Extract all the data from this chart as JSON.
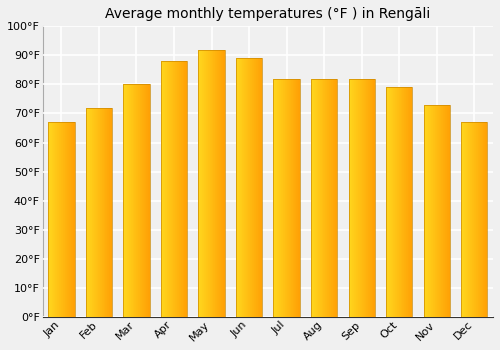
{
  "title": "Average monthly temperatures (°F ) in Rengāli",
  "months": [
    "Jan",
    "Feb",
    "Mar",
    "Apr",
    "May",
    "Jun",
    "Jul",
    "Aug",
    "Sep",
    "Oct",
    "Nov",
    "Dec"
  ],
  "values": [
    67,
    72,
    80,
    88,
    92,
    89,
    82,
    82,
    82,
    79,
    73,
    67
  ],
  "ylim": [
    0,
    100
  ],
  "yticks": [
    0,
    10,
    20,
    30,
    40,
    50,
    60,
    70,
    80,
    90,
    100
  ],
  "ytick_labels": [
    "0°F",
    "10°F",
    "20°F",
    "30°F",
    "40°F",
    "50°F",
    "60°F",
    "70°F",
    "80°F",
    "90°F",
    "100°F"
  ],
  "background_color": "#f0f0f0",
  "grid_color": "#ffffff",
  "bar_color_left": "#FFD740",
  "bar_color_right": "#FFA000",
  "bar_edge_color": "#CC8800",
  "title_fontsize": 10,
  "tick_fontsize": 8,
  "bar_width": 0.7
}
